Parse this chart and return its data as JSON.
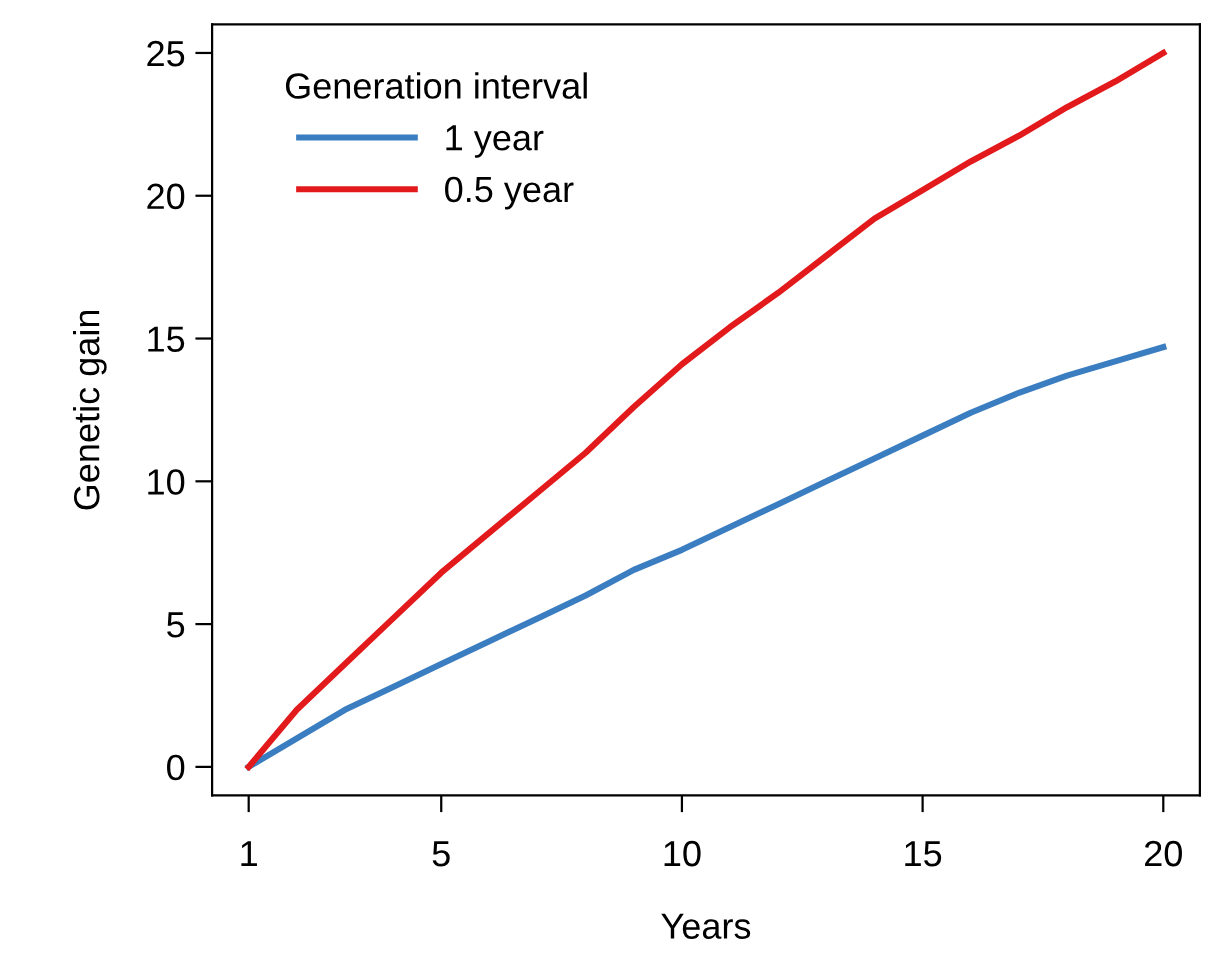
{
  "chart_data": {
    "type": "line",
    "xlabel": "Years",
    "ylabel": "Genetic gain",
    "legend_title": "Generation interval",
    "legend": "top left",
    "grid": false,
    "x": [
      1,
      2,
      3,
      4,
      5,
      6,
      7,
      8,
      9,
      10,
      11,
      12,
      13,
      14,
      15,
      16,
      17,
      18,
      19,
      20
    ],
    "series": [
      {
        "name": "1 year",
        "color": "#3a7dc0",
        "values": [
          0,
          1.0,
          2.0,
          2.8,
          3.6,
          4.4,
          5.2,
          6.0,
          6.9,
          7.6,
          8.4,
          9.2,
          10.0,
          10.8,
          11.6,
          12.4,
          13.1,
          13.7,
          14.2,
          14.7
        ]
      },
      {
        "name": "0.5 year",
        "color": "#e31a1c",
        "values": [
          0,
          2.0,
          3.6,
          5.2,
          6.8,
          8.2,
          9.6,
          11.0,
          12.6,
          14.1,
          15.4,
          16.6,
          17.9,
          19.2,
          20.2,
          21.2,
          22.1,
          23.1,
          24.0,
          25.0
        ]
      }
    ],
    "xlim": [
      0.24,
      20.76
    ],
    "ylim": [
      -1,
      26
    ],
    "xticks": [
      1,
      5,
      10,
      15,
      20
    ],
    "yticks": [
      0,
      5,
      10,
      15,
      20,
      25
    ]
  }
}
